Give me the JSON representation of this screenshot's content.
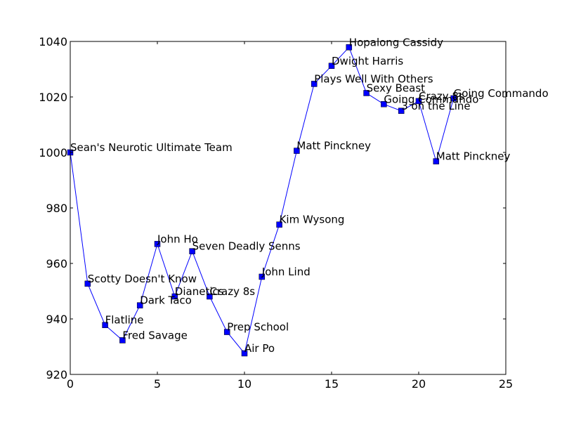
{
  "chart_data": {
    "type": "line",
    "title": "",
    "xlabel": "",
    "ylabel": "",
    "xlim": [
      0,
      25
    ],
    "ylim": [
      920,
      1040
    ],
    "xticks": [
      0,
      5,
      10,
      15,
      20,
      25
    ],
    "yticks": [
      920,
      940,
      960,
      980,
      1000,
      1020,
      1040
    ],
    "xtick_labels": [
      "0",
      "5",
      "10",
      "15",
      "20",
      "25"
    ],
    "ytick_labels": [
      "920",
      "940",
      "960",
      "980",
      "1000",
      "1020",
      "1040"
    ],
    "grid": false,
    "marker": "square",
    "colors": {
      "line": "#0000ff",
      "marker": "#0000ff",
      "axes": "#000000"
    },
    "x": [
      0,
      1,
      2,
      3,
      4,
      5,
      6,
      7,
      8,
      9,
      10,
      11,
      12,
      13,
      14,
      15,
      16,
      17,
      18,
      19,
      20,
      21,
      22
    ],
    "values": [
      1000,
      952.7,
      937.8,
      932.3,
      944.9,
      967.0,
      948.1,
      964.4,
      948.1,
      935.3,
      927.6,
      955.2,
      974.0,
      1000.6,
      1024.7,
      1031.2,
      1037.9,
      1021.4,
      1017.4,
      1015.0,
      1018.5,
      996.8,
      1019.5
    ],
    "labels": [
      "Sean's Neurotic Ultimate Team",
      "Scotty Doesn't Know",
      "Flatline",
      "Fred Savage",
      "Dark Taco",
      "John Ho",
      "Dianetics",
      "Seven Deadly Senns",
      "Crazy 8s",
      "Prep School",
      "Air Po",
      "John Lind",
      "Kim Wysong",
      "Matt Pinckney",
      "Plays Well With Others",
      "Dwight Harris",
      "Hopalong Cassidy",
      "Sexy Beast",
      "Going Commando",
      "3 on the Line",
      "Crazy 8s",
      "Matt Pinckney",
      "Going Commando"
    ]
  }
}
